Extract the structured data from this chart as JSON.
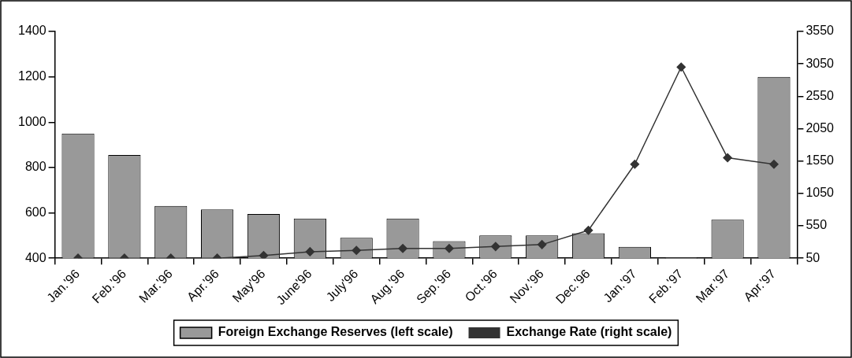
{
  "chart_data": {
    "type": "bar",
    "categories": [
      "Jan.'96",
      "Feb.'96",
      "Mar.'96",
      "Apr.'96",
      "May'96",
      "June'96",
      "July'96",
      "Aug.'96",
      "Sep.'96",
      "Oct.'96",
      "Nov.'96",
      "Dec.'96",
      "Jan.'97",
      "Feb.'97",
      "Mar.'97",
      "Apr.'97"
    ],
    "series": [
      {
        "name": "Foreign Exchange Reserves (left scale)",
        "color": "#999999",
        "values": [
          950,
          855,
          630,
          615,
          595,
          575,
          490,
          575,
          475,
          500,
          500,
          510,
          450,
          405,
          570,
          1200
        ]
      },
      {
        "name": "Exchange Rate (right scale)",
        "type": "line",
        "axis": "y2",
        "color": "#333333",
        "values": [
          50,
          50,
          50,
          50,
          90,
          150,
          170,
          200,
          200,
          230,
          260,
          480,
          1500,
          3000,
          1600,
          1500
        ]
      }
    ],
    "ylim": [
      400,
      1400
    ],
    "yticks": [
      400,
      600,
      800,
      1000,
      1200,
      1400
    ],
    "y2lim": [
      50,
      3550
    ],
    "y2ticks": [
      50,
      550,
      1050,
      1550,
      2050,
      2550,
      3050,
      3550
    ],
    "grid": false,
    "legend": "bottom",
    "marker": "diamond",
    "line_style": "solid"
  }
}
